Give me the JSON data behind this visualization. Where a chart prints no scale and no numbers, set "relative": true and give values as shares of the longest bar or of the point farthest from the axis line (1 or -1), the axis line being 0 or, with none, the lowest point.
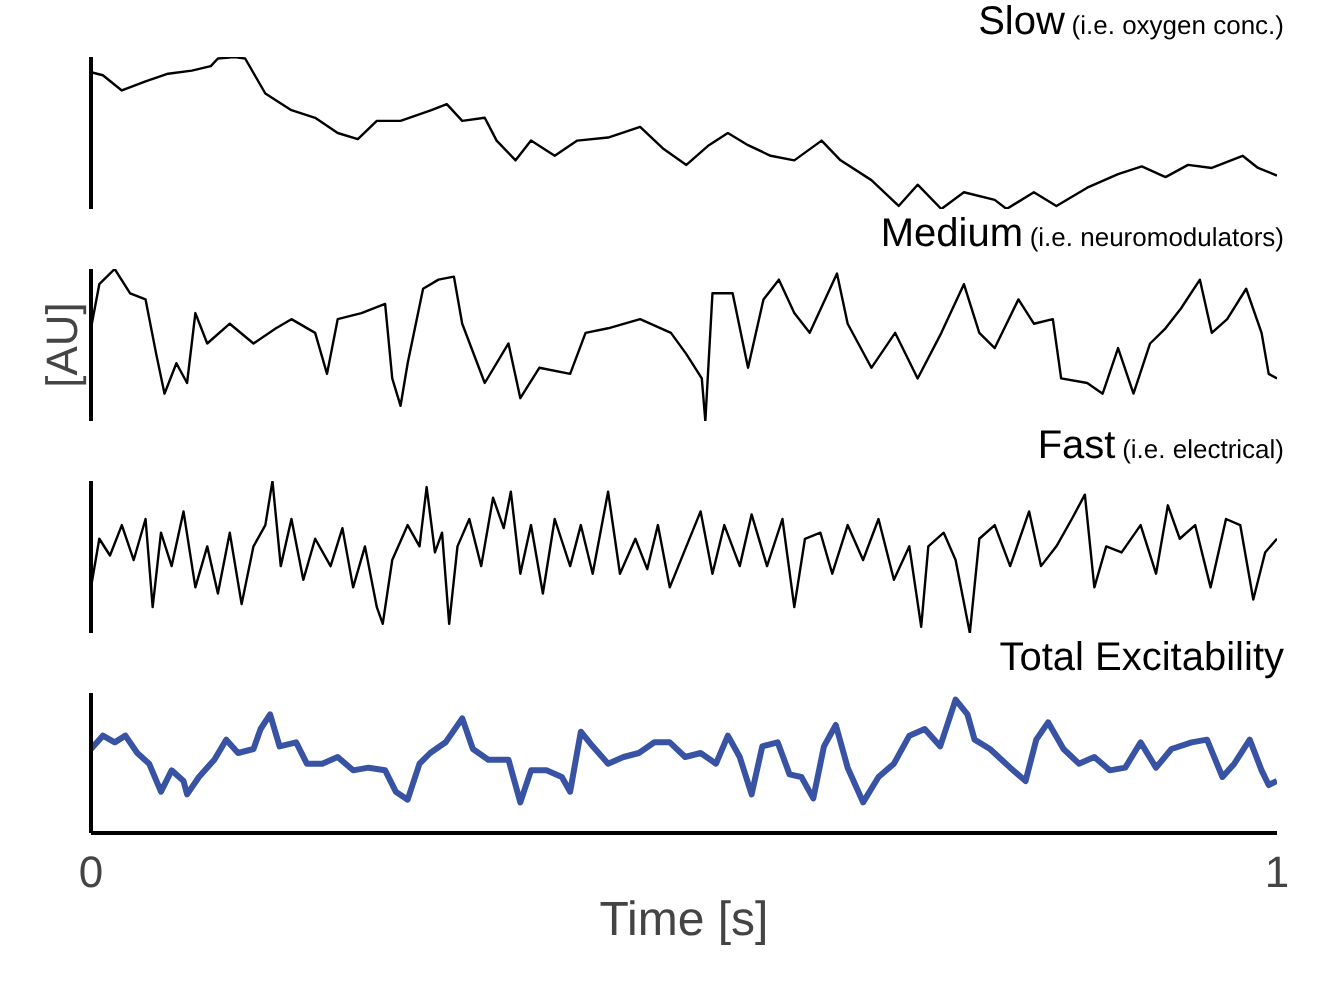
{
  "chart_data": [
    {
      "type": "line",
      "title": "Slow",
      "subtitle": "(i.e. oxygen conc.)",
      "relative": true,
      "xlim": [
        0,
        1
      ],
      "tick_labels": false,
      "x": [
        0,
        0.01,
        0.026,
        0.046,
        0.065,
        0.085,
        0.101,
        0.107,
        0.121,
        0.13,
        0.147,
        0.169,
        0.189,
        0.208,
        0.225,
        0.241,
        0.261,
        0.287,
        0.3,
        0.313,
        0.332,
        0.342,
        0.358,
        0.371,
        0.391,
        0.41,
        0.436,
        0.463,
        0.482,
        0.502,
        0.521,
        0.537,
        0.554,
        0.573,
        0.593,
        0.616,
        0.632,
        0.658,
        0.681,
        0.697,
        0.717,
        0.736,
        0.762,
        0.772,
        0.795,
        0.814,
        0.84,
        0.866,
        0.886,
        0.906,
        0.925,
        0.945,
        0.971,
        0.984,
        1.0
      ],
      "series": [
        {
          "color": "#000000",
          "values": [
            0.9,
            0.88,
            0.78,
            0.84,
            0.89,
            0.91,
            0.94,
            0.99,
            1.0,
            0.99,
            0.76,
            0.65,
            0.6,
            0.5,
            0.46,
            0.58,
            0.58,
            0.65,
            0.69,
            0.58,
            0.6,
            0.45,
            0.32,
            0.45,
            0.35,
            0.45,
            0.47,
            0.54,
            0.4,
            0.29,
            0.42,
            0.5,
            0.42,
            0.35,
            0.32,
            0.45,
            0.32,
            0.19,
            0.02,
            0.16,
            0,
            0.11,
            0.06,
            0,
            0.11,
            0.02,
            0.14,
            0.23,
            0.28,
            0.21,
            0.29,
            0.27,
            0.35,
            0.27,
            0.22
          ]
        }
      ]
    },
    {
      "type": "line",
      "title": "Medium",
      "subtitle": "(i.e. neuromodulators)",
      "ylabel": "[AU]",
      "relative": true,
      "xlim": [
        0,
        1
      ],
      "tick_labels": false,
      "x": [
        0,
        0.007,
        0.02,
        0.033,
        0.046,
        0.055,
        0.062,
        0.072,
        0.081,
        0.088,
        0.098,
        0.117,
        0.137,
        0.156,
        0.169,
        0.189,
        0.199,
        0.208,
        0.228,
        0.248,
        0.254,
        0.261,
        0.267,
        0.28,
        0.293,
        0.306,
        0.313,
        0.332,
        0.352,
        0.362,
        0.378,
        0.404,
        0.417,
        0.436,
        0.463,
        0.489,
        0.502,
        0.515,
        0.518,
        0.524,
        0.541,
        0.554,
        0.567,
        0.58,
        0.593,
        0.606,
        0.629,
        0.638,
        0.658,
        0.678,
        0.697,
        0.717,
        0.736,
        0.749,
        0.762,
        0.782,
        0.795,
        0.811,
        0.818,
        0.84,
        0.853,
        0.866,
        0.879,
        0.893,
        0.906,
        0.919,
        0.935,
        0.945,
        0.958,
        0.974,
        0.987,
        0.993,
        1.0
      ],
      "series": [
        {
          "color": "#000000",
          "values": [
            0.61,
            0.9,
            1.0,
            0.84,
            0.8,
            0.44,
            0.18,
            0.38,
            0.25,
            0.71,
            0.51,
            0.64,
            0.51,
            0.61,
            0.67,
            0.58,
            0.31,
            0.67,
            0.71,
            0.77,
            0.28,
            0.1,
            0.38,
            0.87,
            0.93,
            0.95,
            0.64,
            0.25,
            0.51,
            0.15,
            0.35,
            0.31,
            0.58,
            0.61,
            0.67,
            0.58,
            0.44,
            0.28,
            0,
            0.84,
            0.84,
            0.35,
            0.8,
            0.93,
            0.71,
            0.58,
            0.97,
            0.64,
            0.35,
            0.58,
            0.28,
            0.58,
            0.9,
            0.58,
            0.48,
            0.8,
            0.64,
            0.67,
            0.28,
            0.25,
            0.18,
            0.48,
            0.18,
            0.51,
            0.61,
            0.74,
            0.93,
            0.58,
            0.67,
            0.87,
            0.58,
            0.31,
            0.28
          ]
        }
      ]
    },
    {
      "type": "line",
      "title": "Fast",
      "subtitle": "(i.e. electrical)",
      "relative": true,
      "xlim": [
        0,
        1
      ],
      "tick_labels": false,
      "x": [
        0,
        0.007,
        0.016,
        0.026,
        0.036,
        0.046,
        0.052,
        0.059,
        0.068,
        0.078,
        0.088,
        0.098,
        0.107,
        0.117,
        0.127,
        0.137,
        0.147,
        0.153,
        0.16,
        0.169,
        0.179,
        0.189,
        0.202,
        0.212,
        0.221,
        0.231,
        0.241,
        0.246,
        0.254,
        0.267,
        0.277,
        0.283,
        0.29,
        0.296,
        0.302,
        0.309,
        0.319,
        0.329,
        0.339,
        0.348,
        0.354,
        0.362,
        0.371,
        0.381,
        0.391,
        0.404,
        0.413,
        0.423,
        0.436,
        0.446,
        0.459,
        0.469,
        0.478,
        0.488,
        0.502,
        0.514,
        0.524,
        0.534,
        0.547,
        0.557,
        0.57,
        0.583,
        0.593,
        0.602,
        0.615,
        0.625,
        0.638,
        0.651,
        0.664,
        0.677,
        0.69,
        0.7,
        0.706,
        0.719,
        0.729,
        0.741,
        0.749,
        0.762,
        0.775,
        0.791,
        0.801,
        0.814,
        0.827,
        0.838,
        0.846,
        0.856,
        0.869,
        0.885,
        0.898,
        0.908,
        0.918,
        0.931,
        0.944,
        0.957,
        0.969,
        0.98,
        0.99,
        1.0
      ],
      "series": [
        {
          "color": "#000000",
          "values": [
            0.3,
            0.62,
            0.51,
            0.71,
            0.48,
            0.75,
            0.17,
            0.66,
            0.44,
            0.8,
            0.3,
            0.57,
            0.26,
            0.66,
            0.19,
            0.57,
            0.71,
            1.0,
            0.44,
            0.75,
            0.35,
            0.62,
            0.44,
            0.69,
            0.3,
            0.57,
            0.17,
            0.06,
            0.48,
            0.71,
            0.57,
            0.96,
            0.53,
            0.66,
            0.06,
            0.57,
            0.75,
            0.44,
            0.89,
            0.69,
            0.93,
            0.39,
            0.71,
            0.26,
            0.75,
            0.44,
            0.71,
            0.39,
            0.93,
            0.39,
            0.62,
            0.42,
            0.71,
            0.3,
            0.57,
            0.8,
            0.39,
            0.71,
            0.44,
            0.78,
            0.44,
            0.75,
            0.17,
            0.62,
            0.66,
            0.39,
            0.71,
            0.48,
            0.75,
            0.35,
            0.57,
            0.04,
            0.57,
            0.66,
            0.48,
            0,
            0.62,
            0.71,
            0.44,
            0.8,
            0.44,
            0.57,
            0.75,
            0.91,
            0.3,
            0.57,
            0.53,
            0.71,
            0.39,
            0.84,
            0.62,
            0.71,
            0.3,
            0.75,
            0.71,
            0.22,
            0.53,
            0.62
          ]
        }
      ]
    },
    {
      "type": "line",
      "title": "Total Excitability",
      "xlabel": "Time [s]",
      "relative": true,
      "xlim": [
        0,
        1
      ],
      "xticks": [
        0,
        1
      ],
      "tick_labels": "x",
      "x": [
        0,
        0.01,
        0.02,
        0.029,
        0.039,
        0.049,
        0.059,
        0.068,
        0.078,
        0.081,
        0.091,
        0.104,
        0.114,
        0.124,
        0.137,
        0.143,
        0.151,
        0.159,
        0.173,
        0.182,
        0.195,
        0.208,
        0.221,
        0.234,
        0.248,
        0.257,
        0.267,
        0.277,
        0.286,
        0.299,
        0.313,
        0.322,
        0.335,
        0.352,
        0.362,
        0.371,
        0.384,
        0.397,
        0.404,
        0.413,
        0.423,
        0.436,
        0.449,
        0.462,
        0.475,
        0.488,
        0.501,
        0.514,
        0.527,
        0.537,
        0.547,
        0.557,
        0.566,
        0.579,
        0.589,
        0.599,
        0.609,
        0.618,
        0.628,
        0.638,
        0.651,
        0.664,
        0.677,
        0.69,
        0.703,
        0.716,
        0.729,
        0.739,
        0.745,
        0.758,
        0.775,
        0.788,
        0.797,
        0.807,
        0.82,
        0.833,
        0.846,
        0.859,
        0.872,
        0.885,
        0.898,
        0.911,
        0.928,
        0.941,
        0.954,
        0.964,
        0.977,
        0.987,
        0.993,
        1.0
      ],
      "series": [
        {
          "color": "#3953a4",
          "values": [
            0.63,
            0.73,
            0.68,
            0.73,
            0.6,
            0.52,
            0.31,
            0.47,
            0.39,
            0.29,
            0.42,
            0.55,
            0.7,
            0.6,
            0.63,
            0.78,
            0.89,
            0.65,
            0.68,
            0.52,
            0.52,
            0.57,
            0.47,
            0.49,
            0.47,
            0.31,
            0.25,
            0.52,
            0.6,
            0.68,
            0.86,
            0.63,
            0.55,
            0.55,
            0.23,
            0.47,
            0.47,
            0.42,
            0.31,
            0.76,
            0.65,
            0.52,
            0.57,
            0.6,
            0.68,
            0.68,
            0.57,
            0.6,
            0.52,
            0.73,
            0.57,
            0.29,
            0.65,
            0.68,
            0.44,
            0.42,
            0.26,
            0.65,
            0.81,
            0.49,
            0.23,
            0.42,
            0.52,
            0.73,
            0.78,
            0.65,
            1.0,
            0.89,
            0.7,
            0.63,
            0.49,
            0.39,
            0.7,
            0.83,
            0.63,
            0.52,
            0.57,
            0.47,
            0.49,
            0.68,
            0.49,
            0.63,
            0.68,
            0.7,
            0.42,
            0.52,
            0.7,
            0.47,
            0.36,
            0.39
          ]
        }
      ]
    }
  ]
}
